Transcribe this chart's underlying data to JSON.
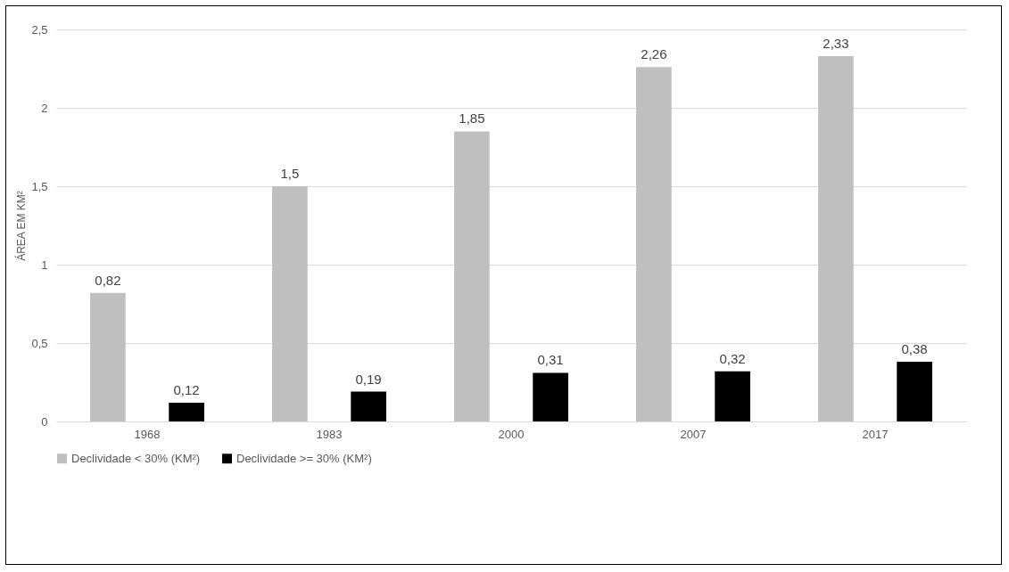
{
  "chart_data": {
    "type": "bar",
    "ylabel": "ÁREA EM KM²",
    "categories": [
      "1968",
      "1983",
      "2000",
      "2007",
      "2017"
    ],
    "series": [
      {
        "name": "Declividade <  30% (KM²)",
        "color": "#bfbfbf",
        "values": [
          0.82,
          1.5,
          1.85,
          2.26,
          2.33
        ],
        "value_labels": [
          "0,82",
          "1,5",
          "1,85",
          "2,26",
          "2,33"
        ]
      },
      {
        "name": "Declividade >= 30% (KM²)",
        "color": "#000000",
        "values": [
          0.12,
          0.19,
          0.31,
          0.32,
          0.38
        ],
        "value_labels": [
          "0,12",
          "0,19",
          "0,31",
          "0,32",
          "0,38"
        ]
      }
    ],
    "ylim": [
      0,
      2.5
    ],
    "yticks": [
      0,
      {
        "value": 0.5,
        "label": "0,5"
      },
      1,
      {
        "value": 1.5,
        "label": "1,5"
      },
      2,
      {
        "value": 2.5,
        "label": "2,5"
      }
    ],
    "grid": "y",
    "legend": "bottom"
  }
}
